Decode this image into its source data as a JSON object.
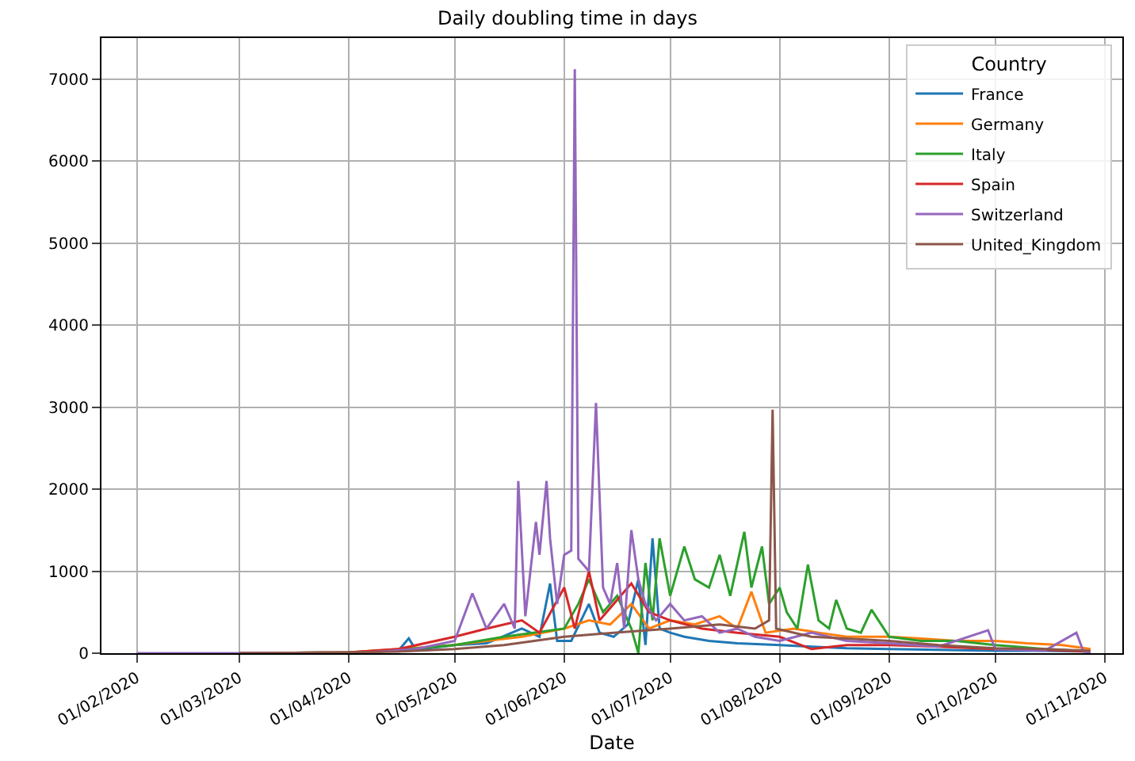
{
  "chart_data": {
    "type": "line",
    "title": "Daily doubling time in days",
    "xlabel": "Date",
    "legend_title": "Country",
    "legend": "top right",
    "grid": true,
    "line_style": "solid",
    "xlim": [
      "2020-01-22",
      "2020-11-06"
    ],
    "xticks": [
      {
        "value": "2020-02-01",
        "label": "01/02/2020"
      },
      {
        "value": "2020-03-01",
        "label": "01/03/2020"
      },
      {
        "value": "2020-04-01",
        "label": "01/04/2020"
      },
      {
        "value": "2020-05-01",
        "label": "01/05/2020"
      },
      {
        "value": "2020-06-01",
        "label": "01/06/2020"
      },
      {
        "value": "2020-07-01",
        "label": "01/07/2020"
      },
      {
        "value": "2020-08-01",
        "label": "01/08/2020"
      },
      {
        "value": "2020-09-01",
        "label": "01/09/2020"
      },
      {
        "value": "2020-10-01",
        "label": "01/10/2020"
      },
      {
        "value": "2020-11-01",
        "label": "01/11/2020"
      }
    ],
    "ylim": [
      0,
      7500
    ],
    "yticks": [
      0,
      1000,
      2000,
      3000,
      4000,
      5000,
      6000,
      7000
    ],
    "series": [
      {
        "name": "France",
        "color": "#1f77b4",
        "x": [
          "2020-03-01",
          "2020-04-01",
          "2020-04-15",
          "2020-04-18",
          "2020-04-20",
          "2020-05-01",
          "2020-05-10",
          "2020-05-20",
          "2020-05-25",
          "2020-05-28",
          "2020-05-30",
          "2020-06-03",
          "2020-06-08",
          "2020-06-11",
          "2020-06-15",
          "2020-06-19",
          "2020-06-22",
          "2020-06-24",
          "2020-06-26",
          "2020-06-28",
          "2020-07-01",
          "2020-07-05",
          "2020-07-12",
          "2020-07-20",
          "2020-08-01",
          "2020-08-10",
          "2020-08-20",
          "2020-09-01",
          "2020-09-15",
          "2020-10-01",
          "2020-10-15",
          "2020-10-28"
        ],
        "values": [
          0,
          10,
          30,
          180,
          40,
          100,
          120,
          300,
          200,
          850,
          150,
          150,
          600,
          250,
          200,
          350,
          900,
          100,
          1400,
          300,
          250,
          200,
          150,
          120,
          100,
          80,
          60,
          50,
          40,
          30,
          30,
          20
        ]
      },
      {
        "name": "Germany",
        "color": "#ff7f0e",
        "x": [
          "2020-03-01",
          "2020-04-01",
          "2020-04-15",
          "2020-05-01",
          "2020-05-10",
          "2020-05-20",
          "2020-06-01",
          "2020-06-08",
          "2020-06-14",
          "2020-06-20",
          "2020-06-25",
          "2020-07-01",
          "2020-07-08",
          "2020-07-15",
          "2020-07-20",
          "2020-07-24",
          "2020-07-28",
          "2020-08-05",
          "2020-08-12",
          "2020-08-20",
          "2020-09-01",
          "2020-09-10",
          "2020-09-20",
          "2020-10-01",
          "2020-10-10",
          "2020-10-20",
          "2020-10-28"
        ],
        "values": [
          0,
          10,
          50,
          100,
          150,
          200,
          300,
          400,
          350,
          600,
          300,
          400,
          350,
          450,
          300,
          750,
          250,
          300,
          250,
          200,
          200,
          180,
          150,
          150,
          120,
          100,
          50
        ]
      },
      {
        "name": "Italy",
        "color": "#2ca02c",
        "x": [
          "2020-03-01",
          "2020-04-01",
          "2020-04-15",
          "2020-05-01",
          "2020-05-15",
          "2020-06-01",
          "2020-06-05",
          "2020-06-08",
          "2020-06-12",
          "2020-06-16",
          "2020-06-20",
          "2020-06-22",
          "2020-06-24",
          "2020-06-26",
          "2020-06-28",
          "2020-07-01",
          "2020-07-05",
          "2020-07-08",
          "2020-07-12",
          "2020-07-15",
          "2020-07-18",
          "2020-07-22",
          "2020-07-24",
          "2020-07-27",
          "2020-07-29",
          "2020-08-01",
          "2020-08-03",
          "2020-08-06",
          "2020-08-09",
          "2020-08-12",
          "2020-08-15",
          "2020-08-17",
          "2020-08-20",
          "2020-08-24",
          "2020-08-27",
          "2020-09-01",
          "2020-09-10",
          "2020-09-20",
          "2020-10-01",
          "2020-10-15",
          "2020-10-28"
        ],
        "values": [
          0,
          10,
          40,
          100,
          200,
          300,
          600,
          900,
          500,
          700,
          300,
          0,
          1100,
          400,
          1400,
          700,
          1300,
          900,
          800,
          1200,
          700,
          1480,
          800,
          1300,
          600,
          800,
          500,
          300,
          1080,
          400,
          300,
          650,
          300,
          250,
          530,
          200,
          150,
          150,
          100,
          50,
          20
        ]
      },
      {
        "name": "Spain",
        "color": "#d62728",
        "x": [
          "2020-03-01",
          "2020-04-01",
          "2020-04-15",
          "2020-05-01",
          "2020-05-10",
          "2020-05-20",
          "2020-05-25",
          "2020-06-01",
          "2020-06-04",
          "2020-06-08",
          "2020-06-11",
          "2020-06-15",
          "2020-06-20",
          "2020-06-25",
          "2020-07-01",
          "2020-07-10",
          "2020-07-20",
          "2020-08-01",
          "2020-08-10",
          "2020-08-20",
          "2020-09-01",
          "2020-09-15",
          "2020-10-01",
          "2020-10-15",
          "2020-10-28"
        ],
        "values": [
          0,
          10,
          50,
          200,
          300,
          400,
          250,
          800,
          300,
          1000,
          400,
          600,
          850,
          500,
          400,
          300,
          250,
          200,
          50,
          100,
          100,
          80,
          50,
          40,
          20
        ]
      },
      {
        "name": "Switzerland",
        "color": "#9467bd",
        "x": [
          "2020-02-01",
          "2020-03-01",
          "2020-04-01",
          "2020-04-10",
          "2020-04-20",
          "2020-05-01",
          "2020-05-06",
          "2020-05-10",
          "2020-05-15",
          "2020-05-18",
          "2020-05-19",
          "2020-05-21",
          "2020-05-24",
          "2020-05-25",
          "2020-05-27",
          "2020-05-28",
          "2020-05-30",
          "2020-06-01",
          "2020-06-03",
          "2020-06-04",
          "2020-06-05",
          "2020-06-08",
          "2020-06-10",
          "2020-06-12",
          "2020-06-14",
          "2020-06-16",
          "2020-06-18",
          "2020-06-20",
          "2020-06-22",
          "2020-06-24",
          "2020-06-27",
          "2020-07-01",
          "2020-07-05",
          "2020-07-10",
          "2020-07-15",
          "2020-07-20",
          "2020-07-25",
          "2020-08-01",
          "2020-08-10",
          "2020-08-20",
          "2020-09-01",
          "2020-09-15",
          "2020-09-29",
          "2020-10-01",
          "2020-10-15",
          "2020-10-24",
          "2020-10-26",
          "2020-10-28"
        ],
        "values": [
          0,
          0,
          0,
          20,
          50,
          150,
          730,
          300,
          600,
          300,
          2100,
          450,
          1600,
          1200,
          2100,
          1400,
          600,
          1200,
          1250,
          7120,
          1150,
          1000,
          3050,
          800,
          600,
          1100,
          300,
          1500,
          900,
          600,
          400,
          600,
          400,
          450,
          250,
          300,
          200,
          150,
          250,
          150,
          120,
          80,
          280,
          50,
          30,
          250,
          20,
          10
        ]
      },
      {
        "name": "United_Kingdom",
        "color": "#8c564b",
        "x": [
          "2020-03-01",
          "2020-04-01",
          "2020-04-15",
          "2020-05-01",
          "2020-05-15",
          "2020-06-01",
          "2020-06-15",
          "2020-07-01",
          "2020-07-15",
          "2020-07-25",
          "2020-07-29",
          "2020-07-30",
          "2020-07-31",
          "2020-08-10",
          "2020-08-20",
          "2020-09-01",
          "2020-09-15",
          "2020-10-01",
          "2020-10-15",
          "2020-10-28"
        ],
        "values": [
          0,
          10,
          20,
          50,
          100,
          200,
          250,
          300,
          350,
          300,
          400,
          2970,
          300,
          200,
          180,
          150,
          100,
          60,
          50,
          30
        ]
      }
    ]
  }
}
